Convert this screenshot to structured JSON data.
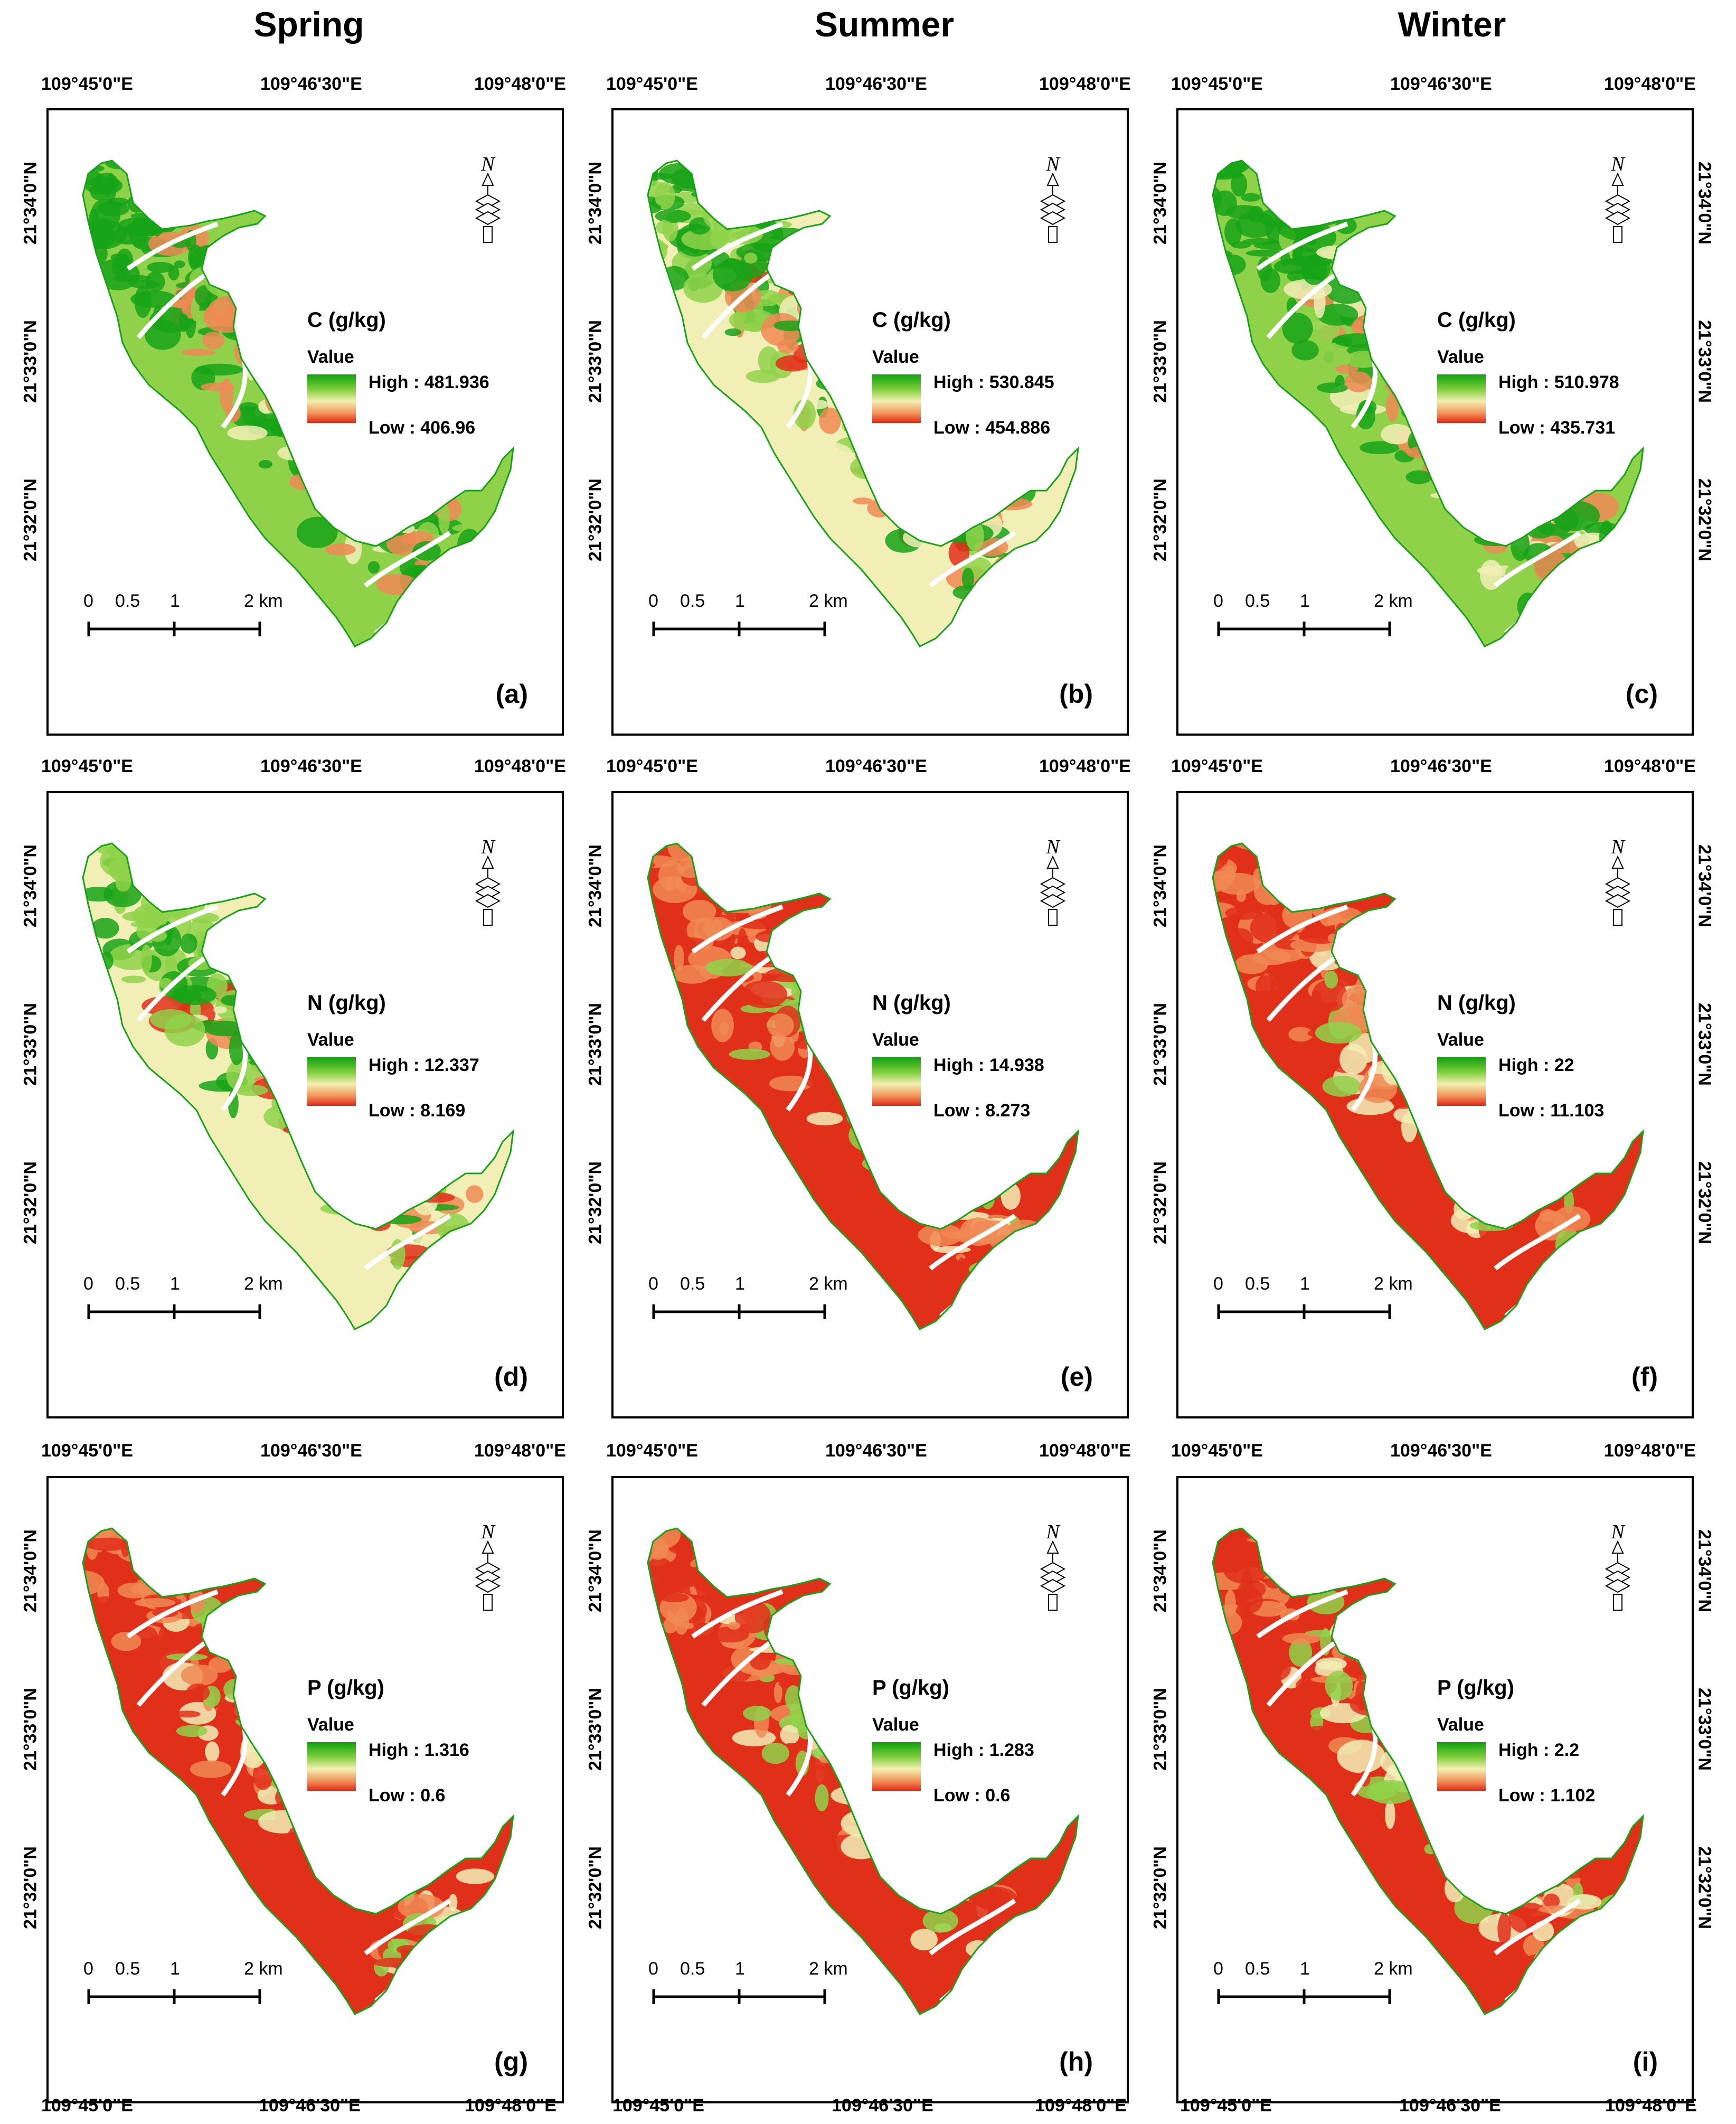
{
  "seasons": [
    "Spring",
    "Summer",
    "Winter"
  ],
  "coords": {
    "top_left": "109°45'0\"E",
    "top_mid": "109°46'30\"E",
    "top_right": "109°48'0\"E",
    "lat1": "21°34'0\"N",
    "lat2": "21°33'0\"N",
    "lat3": "21°32'0\"N"
  },
  "legend": {
    "value_label": "Value"
  },
  "scale": {
    "t0": "0",
    "t1": "0.5",
    "t2": "1",
    "t3": "2 km"
  },
  "north_letter": "N",
  "panels": [
    {
      "label": "(a)",
      "variable": "C (g/kg)",
      "high": "High : 481.936",
      "low": "Low : 406.96",
      "scheme": "green-dominant"
    },
    {
      "label": "(b)",
      "variable": "C (g/kg)",
      "high": "High : 530.845",
      "low": "Low : 454.886",
      "scheme": "mixed"
    },
    {
      "label": "(c)",
      "variable": "C (g/kg)",
      "high": "High : 510.978",
      "low": "Low : 435.731",
      "scheme": "green-dominant"
    },
    {
      "label": "(d)",
      "variable": "N (g/kg)",
      "high": "High : 12.337",
      "low": "Low : 8.169",
      "scheme": "mixed"
    },
    {
      "label": "(e)",
      "variable": "N (g/kg)",
      "high": "High : 14.938",
      "low": "Low : 8.273",
      "scheme": "red-dominant"
    },
    {
      "label": "(f)",
      "variable": "N (g/kg)",
      "high": "High : 22",
      "low": "Low : 11.103",
      "scheme": "red-dominant"
    },
    {
      "label": "(g)",
      "variable": "P (g/kg)",
      "high": "High : 1.316",
      "low": "Low : 0.6",
      "scheme": "red-dominant"
    },
    {
      "label": "(h)",
      "variable": "P (g/kg)",
      "high": "High : 1.283",
      "low": "Low : 0.6",
      "scheme": "red-dominant"
    },
    {
      "label": "(i)",
      "variable": "P (g/kg)",
      "high": "High : 2.2",
      "low": "Low : 1.102",
      "scheme": "red-dominant"
    }
  ],
  "colors": {
    "green": "#17a317",
    "lightgreen": "#8fd24a",
    "cream": "#f1efb6",
    "orange": "#f08a55",
    "red": "#e0301a"
  }
}
